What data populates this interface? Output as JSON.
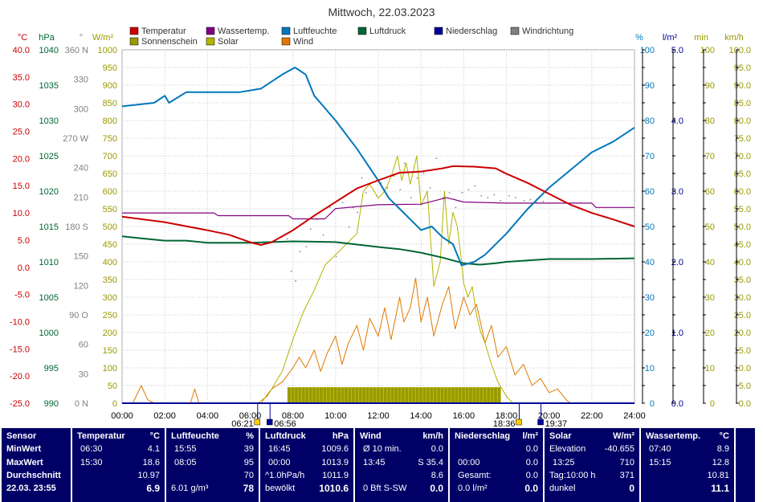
{
  "chart_data": {
    "type": "line",
    "title": "Mittwoch, 22.03.2023",
    "xlabel": "",
    "x_ticks": [
      "00:00",
      "02:00",
      "04:00",
      "06:00",
      "08:00",
      "10:00",
      "12:00",
      "14:00",
      "16:00",
      "18:00",
      "20:00",
      "22:00",
      "24:00"
    ],
    "x_range_hours": [
      0,
      24
    ],
    "grid": true,
    "legend": [
      {
        "name": "Temperatur",
        "color": "#cc0000"
      },
      {
        "name": "Wassertemp.",
        "color": "#800080"
      },
      {
        "name": "Luftfeuchte",
        "color": "#0077bb"
      },
      {
        "name": "Luftdruck",
        "color": "#006633"
      },
      {
        "name": "Niederschlag",
        "color": "#000099"
      },
      {
        "name": "Windrichtung",
        "color": "#808080"
      },
      {
        "name": "Sonnenschein",
        "color": "#999900"
      },
      {
        "name": "Solar",
        "color": "#b3b300"
      },
      {
        "name": "Wind",
        "color": "#e07800"
      }
    ],
    "axes": {
      "temp": {
        "unit": "°C",
        "range": [
          -25,
          40
        ],
        "ticks": [
          "40.0",
          "35.0",
          "30.0",
          "25.0",
          "20.0",
          "15.0",
          "10.0",
          "5.0",
          "0.0",
          "-5.0",
          "-10.0",
          "-15.0",
          "-20.0",
          "-25.0"
        ]
      },
      "press": {
        "unit": "hPa",
        "range": [
          990,
          1040
        ],
        "ticks": [
          "1040",
          "1035",
          "1030",
          "1025",
          "1020",
          "1015",
          "1010",
          "1005",
          "1000",
          "995",
          "990"
        ]
      },
      "dir": {
        "unit": "°",
        "range": [
          0,
          360
        ],
        "ticks": [
          "360 N",
          "330",
          "300",
          "270 W",
          "240",
          "210",
          "180 S",
          "150",
          "120",
          "90 O",
          "60",
          "30",
          "0 N"
        ]
      },
      "solar": {
        "unit": "W/m²",
        "range": [
          0,
          1000
        ],
        "ticks": [
          "1000",
          "950",
          "900",
          "850",
          "800",
          "750",
          "700",
          "650",
          "600",
          "550",
          "500",
          "450",
          "400",
          "350",
          "300",
          "250",
          "200",
          "150",
          "100",
          "50",
          "0"
        ]
      },
      "hum": {
        "unit": "%",
        "range": [
          0,
          100
        ],
        "ticks": [
          "100",
          "90",
          "80",
          "70",
          "60",
          "50",
          "40",
          "30",
          "20",
          "10",
          "0"
        ]
      },
      "rain": {
        "unit": "l/m²",
        "range": [
          0,
          5
        ],
        "ticks": [
          "5.0",
          "4.0",
          "3.0",
          "2.0",
          "1.0",
          "0.0"
        ]
      },
      "sun": {
        "unit": "min",
        "range": [
          0,
          100
        ],
        "ticks": [
          "100",
          "90",
          "80",
          "70",
          "60",
          "50",
          "40",
          "30",
          "20",
          "10",
          "0"
        ]
      },
      "wind": {
        "unit": "km/h",
        "range": [
          0,
          100
        ],
        "ticks": [
          "100.0",
          "95.0",
          "90.0",
          "85.0",
          "80.0",
          "75.0",
          "70.0",
          "65.0",
          "60.0",
          "55.0",
          "50.0",
          "45.0",
          "40.0",
          "35.0",
          "30.0",
          "25.0",
          "20.0",
          "15.0",
          "10.0",
          "5.0",
          "0.0"
        ]
      }
    },
    "temperature": [
      [
        0,
        9.3
      ],
      [
        2,
        8.3
      ],
      [
        4,
        6.8
      ],
      [
        5,
        6.0
      ],
      [
        6,
        4.6
      ],
      [
        6.5,
        4.1
      ],
      [
        7,
        4.6
      ],
      [
        8,
        6.8
      ],
      [
        9,
        9.5
      ],
      [
        10,
        12.0
      ],
      [
        11,
        14.5
      ],
      [
        12,
        16.0
      ],
      [
        13,
        17.4
      ],
      [
        14,
        17.6
      ],
      [
        15,
        18.2
      ],
      [
        15.5,
        18.6
      ],
      [
        16.5,
        18.5
      ],
      [
        17.5,
        18.2
      ],
      [
        18,
        17.2
      ],
      [
        19,
        15.5
      ],
      [
        20,
        13.5
      ],
      [
        21,
        11.5
      ],
      [
        22,
        10.0
      ],
      [
        23,
        8.8
      ],
      [
        24,
        7.5
      ]
    ],
    "water_temp": [
      [
        0,
        10.0
      ],
      [
        4.3,
        10.0
      ],
      [
        4.5,
        9.5
      ],
      [
        7.8,
        9.5
      ],
      [
        8,
        8.9
      ],
      [
        9.5,
        8.9
      ],
      [
        10,
        10.8
      ],
      [
        12,
        11.5
      ],
      [
        14,
        11.6
      ],
      [
        15.2,
        12.8
      ],
      [
        16,
        12.0
      ],
      [
        18,
        11.8
      ],
      [
        22,
        11.8
      ],
      [
        22.2,
        11.0
      ],
      [
        24,
        11.0
      ]
    ],
    "humidity": [
      [
        0,
        84
      ],
      [
        1.5,
        85
      ],
      [
        2,
        87
      ],
      [
        2.2,
        85
      ],
      [
        3,
        88
      ],
      [
        5.5,
        88
      ],
      [
        6.5,
        89
      ],
      [
        7.5,
        93
      ],
      [
        8.1,
        95
      ],
      [
        8.6,
        93
      ],
      [
        9,
        87
      ],
      [
        10,
        80
      ],
      [
        11,
        72
      ],
      [
        12,
        63
      ],
      [
        12.5,
        58
      ],
      [
        13,
        55
      ],
      [
        13.5,
        52
      ],
      [
        14,
        49
      ],
      [
        14.5,
        50
      ],
      [
        15,
        47
      ],
      [
        15.5,
        45
      ],
      [
        15.9,
        39
      ],
      [
        16.5,
        40
      ],
      [
        17,
        42
      ],
      [
        18,
        48
      ],
      [
        19,
        55
      ],
      [
        20,
        61
      ],
      [
        21,
        66
      ],
      [
        22,
        71
      ],
      [
        23,
        74
      ],
      [
        24,
        78
      ]
    ],
    "pressure": [
      [
        0,
        1013.6
      ],
      [
        1,
        1013.3
      ],
      [
        2,
        1013.0
      ],
      [
        3,
        1013.0
      ],
      [
        4,
        1012.7
      ],
      [
        6,
        1012.7
      ],
      [
        8,
        1012.9
      ],
      [
        10,
        1012.8
      ],
      [
        12,
        1012.1
      ],
      [
        13,
        1011.8
      ],
      [
        14,
        1011.3
      ],
      [
        15,
        1010.6
      ],
      [
        16,
        1009.8
      ],
      [
        16.75,
        1009.6
      ],
      [
        17.5,
        1009.8
      ],
      [
        18,
        1010.0
      ],
      [
        19,
        1010.2
      ],
      [
        20,
        1010.4
      ],
      [
        22,
        1010.4
      ],
      [
        24,
        1010.5
      ]
    ],
    "rain": [
      [
        0,
        0.0
      ],
      [
        24,
        0.0
      ]
    ],
    "solar": [
      [
        6.35,
        0
      ],
      [
        6.8,
        20
      ],
      [
        7.5,
        90
      ],
      [
        8,
        180
      ],
      [
        8.5,
        260
      ],
      [
        9,
        320
      ],
      [
        9.5,
        390
      ],
      [
        10,
        420
      ],
      [
        10.5,
        450
      ],
      [
        11,
        480
      ],
      [
        11.3,
        600
      ],
      [
        11.6,
        620
      ],
      [
        12,
        580
      ],
      [
        12.3,
        600
      ],
      [
        12.6,
        640
      ],
      [
        12.9,
        700
      ],
      [
        13.1,
        630
      ],
      [
        13.3,
        680
      ],
      [
        13.5,
        620
      ],
      [
        13.8,
        700
      ],
      [
        14,
        560
      ],
      [
        14.3,
        600
      ],
      [
        14.6,
        330
      ],
      [
        14.9,
        400
      ],
      [
        15.1,
        600
      ],
      [
        15.3,
        450
      ],
      [
        15.5,
        540
      ],
      [
        15.7,
        500
      ],
      [
        15.9,
        400
      ],
      [
        16,
        340
      ],
      [
        16.2,
        300
      ],
      [
        16.4,
        330
      ],
      [
        16.6,
        250
      ],
      [
        16.8,
        200
      ],
      [
        17,
        170
      ],
      [
        17.3,
        110
      ],
      [
        17.6,
        60
      ],
      [
        18,
        20
      ],
      [
        18.3,
        0
      ]
    ],
    "wind_speed": [
      [
        0,
        0
      ],
      [
        0.5,
        0
      ],
      [
        0.9,
        5
      ],
      [
        1.2,
        1
      ],
      [
        1.5,
        0
      ],
      [
        3.2,
        0
      ],
      [
        3.4,
        4
      ],
      [
        3.6,
        0
      ],
      [
        6.5,
        0
      ],
      [
        7,
        4
      ],
      [
        7.5,
        6
      ],
      [
        8,
        10
      ],
      [
        8.3,
        13
      ],
      [
        8.6,
        10
      ],
      [
        9,
        15
      ],
      [
        9.3,
        9
      ],
      [
        9.6,
        14
      ],
      [
        10,
        19
      ],
      [
        10.3,
        11
      ],
      [
        10.6,
        17
      ],
      [
        11,
        22
      ],
      [
        11.3,
        15
      ],
      [
        11.6,
        24
      ],
      [
        12,
        19
      ],
      [
        12.3,
        27
      ],
      [
        12.6,
        18
      ],
      [
        13,
        30
      ],
      [
        13.2,
        23
      ],
      [
        13.5,
        27
      ],
      [
        13.75,
        35.4
      ],
      [
        14,
        23
      ],
      [
        14.3,
        30
      ],
      [
        14.6,
        19
      ],
      [
        15,
        28
      ],
      [
        15.3,
        33
      ],
      [
        15.6,
        21
      ],
      [
        16,
        30
      ],
      [
        16.3,
        25
      ],
      [
        16.6,
        28
      ],
      [
        17,
        17
      ],
      [
        17.3,
        22
      ],
      [
        17.6,
        13
      ],
      [
        18,
        16
      ],
      [
        18.4,
        8
      ],
      [
        18.8,
        11
      ],
      [
        19.2,
        5
      ],
      [
        19.6,
        7
      ],
      [
        20,
        3
      ],
      [
        20.4,
        4
      ],
      [
        20.8,
        1
      ],
      [
        21,
        0
      ]
    ],
    "wind_dir_points": [
      [
        7.7,
        168
      ],
      [
        7.9,
        135
      ],
      [
        8.1,
        125
      ],
      [
        8.3,
        155
      ],
      [
        8.6,
        160
      ],
      [
        8.8,
        178
      ],
      [
        9.1,
        188
      ],
      [
        9.4,
        172
      ],
      [
        9.7,
        200
      ],
      [
        10,
        150
      ],
      [
        10.3,
        205
      ],
      [
        10.6,
        180
      ],
      [
        10.8,
        200
      ],
      [
        11,
        195
      ],
      [
        11.2,
        230
      ],
      [
        11.4,
        215
      ],
      [
        11.6,
        240
      ],
      [
        11.9,
        212
      ],
      [
        12.1,
        225
      ],
      [
        12.4,
        220
      ],
      [
        12.7,
        232
      ],
      [
        13,
        218
      ],
      [
        13.2,
        245
      ],
      [
        13.5,
        210
      ],
      [
        13.8,
        230
      ],
      [
        14.1,
        235
      ],
      [
        14.4,
        220
      ],
      [
        14.7,
        250
      ],
      [
        15,
        210
      ],
      [
        15.3,
        215
      ],
      [
        15.6,
        200
      ],
      [
        15.9,
        215
      ],
      [
        16.2,
        218
      ],
      [
        16.5,
        222
      ],
      [
        16.8,
        212
      ],
      [
        17.1,
        210
      ],
      [
        17.4,
        213
      ],
      [
        17.7,
        207
      ],
      [
        18.1,
        212
      ],
      [
        18.4,
        210
      ],
      [
        18.8,
        207
      ],
      [
        19.1,
        208
      ],
      [
        19.4,
        205
      ],
      [
        19.7,
        206
      ]
    ],
    "sunshine": {
      "start_hour": 7.75,
      "end_hour": 17.6,
      "value_min": 4.5
    }
  },
  "sun_times": {
    "sunrise": "06:21",
    "dawn": "06:56",
    "sunset": "18:36",
    "dusk": "19:37"
  },
  "stats": {
    "sensor": {
      "h": "Sensor",
      "min": "MinWert",
      "max": "MaxWert",
      "avg": "Durchschnitt",
      "date": "22.03. 23:55"
    },
    "temp": {
      "h": "Temperatur",
      "u": "°C",
      "min_t": "06:30",
      "min_v": "4.1",
      "max_t": "15:30",
      "max_v": "18.6",
      "avg": "10.97",
      "cur": "6.9"
    },
    "hum": {
      "h": "Luftfeuchte",
      "u": "%",
      "min_t": "15:55",
      "min_v": "39",
      "max_t": "08:05",
      "max_v": "95",
      "avg": "70",
      "abs": "6.01 g/m³",
      "cur": "78"
    },
    "press": {
      "h": "Luftdruck",
      "u": "hPa",
      "min_t": "16:45",
      "min_v": "1009.6",
      "max_t": "00:00",
      "max_v": "1013.9",
      "trend": "^1.0hPa/h",
      "avg": "1011.9",
      "cond": "bewölkt",
      "cur": "1010.6"
    },
    "wind": {
      "h": "Wind",
      "u": "km/h",
      "l1": "Ø 10 min.",
      "v1": "0.0",
      "t2": "13:45",
      "v2": "S 35.4",
      "v3": "8.6",
      "l4": "0 Bft S-SW",
      "v4": "0.0"
    },
    "rain": {
      "h": "Niederschlag",
      "u": "l/m²",
      "v1": "0.0",
      "t2": "00:00",
      "v2": "0.0",
      "l3": "Gesamt:",
      "v3": "0.0",
      "l4": "0.0 l/m²",
      "v4": "0.0"
    },
    "solar": {
      "h": "Solar",
      "u": "W/m²",
      "l1": "Elevation",
      "v1": "-40.655",
      "t2": "13:25",
      "v2": "710",
      "l3": "Tag:10:00 h",
      "v3": "371",
      "l4": "dunkel",
      "v4": "0"
    },
    "water": {
      "h": "Wassertemp.",
      "u": "°C",
      "t1": "07:40",
      "v1": "8.9",
      "t2": "15:15",
      "v2": "12.8",
      "v3": "10.81",
      "v4": "11.1"
    }
  }
}
